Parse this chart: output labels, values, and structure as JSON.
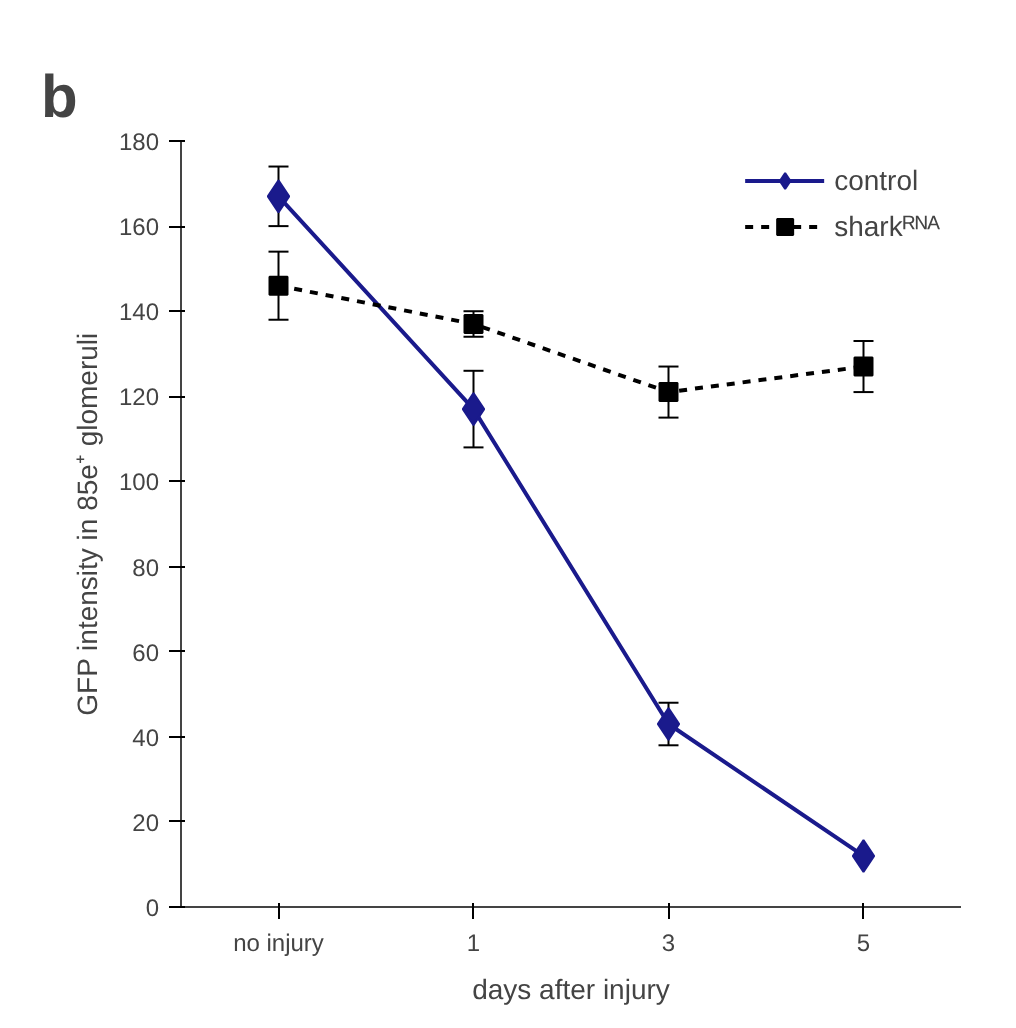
{
  "chart_data": {
    "type": "line",
    "xlabel": "days after injury",
    "ylabel": "GFP intensity in 85e⁺ glomeruli",
    "categories": [
      "no injury",
      "1",
      "3",
      "5"
    ],
    "series": [
      {
        "name": "control",
        "color": "#1a1a8c",
        "values": [
          167,
          117,
          43,
          12
        ],
        "errors": [
          7,
          9,
          5,
          null
        ],
        "marker": "diamond",
        "line_style": "solid"
      },
      {
        "name": "sharkᴿᴺᴬ",
        "color": "#000000",
        "values": [
          146,
          137,
          121,
          127
        ],
        "errors": [
          8,
          3,
          6,
          6
        ],
        "marker": "square",
        "line_style": "dashed"
      }
    ],
    "ylim": [
      0,
      180
    ],
    "yticks": [
      0,
      20,
      40,
      60,
      80,
      100,
      120,
      140,
      160,
      180
    ],
    "grid": false,
    "legend": "top right",
    "annotations": [
      "b"
    ]
  }
}
